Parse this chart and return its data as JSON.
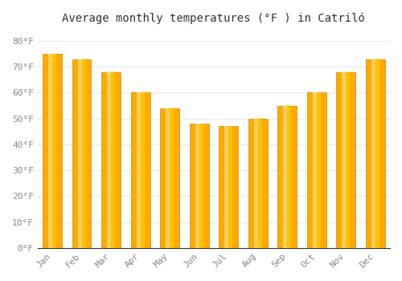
{
  "title": "Average monthly temperatures (°F ) in Catriló",
  "months": [
    "Jan",
    "Feb",
    "Mar",
    "Apr",
    "May",
    "Jun",
    "Jul",
    "Aug",
    "Sep",
    "Oct",
    "Nov",
    "Dec"
  ],
  "values": [
    75,
    73,
    68,
    60,
    54,
    48,
    47,
    50,
    55,
    60,
    68,
    73
  ],
  "bar_color_main": "#FFAA00",
  "bar_color_light": "#FFD966",
  "bar_edge_color": "#CC8800",
  "background_color": "#FFFFFF",
  "plot_bg_color": "#FFFFFF",
  "grid_color": "#E8E8F0",
  "ylabel_ticks": [
    "0°F",
    "10°F",
    "20°F",
    "30°F",
    "40°F",
    "50°F",
    "60°F",
    "70°F",
    "80°F"
  ],
  "yticks": [
    0,
    10,
    20,
    30,
    40,
    50,
    60,
    70,
    80
  ],
  "ylim": [
    0,
    85
  ],
  "title_fontsize": 10,
  "tick_fontsize": 8,
  "tick_color": "#888888",
  "font_family": "monospace"
}
